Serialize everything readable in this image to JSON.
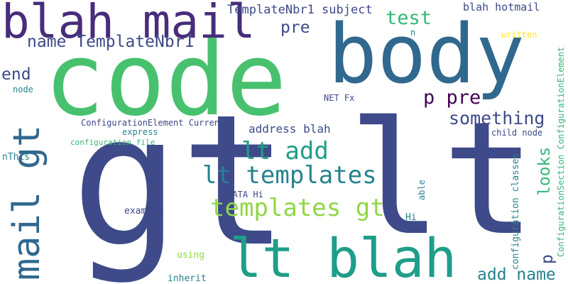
{
  "palette": {
    "navy": "#3e4a89",
    "indigo": "#472d7b",
    "purple": "#440154",
    "steel": "#31688e",
    "teal": "#26828e",
    "sea": "#1f9e89",
    "green": "#35b779",
    "mid_green": "#47c16e",
    "lime": "#8fd744",
    "yellow": "#fde725"
  },
  "words": [
    {
      "text": "gt",
      "color": "#3e4a89"
    },
    {
      "text": "lt",
      "color": "#3e4a89"
    },
    {
      "text": "code",
      "color": "#47c16e"
    },
    {
      "text": "body",
      "color": "#31688e"
    },
    {
      "text": "blah mail",
      "color": "#472d7b"
    },
    {
      "text": "lt blah",
      "color": "#1f9e89"
    },
    {
      "text": "mail gt",
      "color": "#31688e"
    },
    {
      "text": "lt templates",
      "color": "#26828e"
    },
    {
      "text": "templates gt",
      "color": "#8fd744"
    },
    {
      "text": "lt add",
      "color": "#1f9e89"
    },
    {
      "text": "TemplateNbr1 subject",
      "color": "#3e4a89"
    },
    {
      "text": "name TemplateNbr1",
      "color": "#3e4a89"
    },
    {
      "text": "test",
      "color": "#35b779"
    },
    {
      "text": "pre",
      "color": "#3e4a89"
    },
    {
      "text": "blah hotmail",
      "color": "#3e4a89"
    },
    {
      "text": "n",
      "color": "#26828e"
    },
    {
      "text": "written",
      "color": "#fde725"
    },
    {
      "text": "end",
      "color": "#3e4a89"
    },
    {
      "text": "p pre",
      "color": "#440154"
    },
    {
      "text": "something",
      "color": "#3e4a89"
    },
    {
      "text": "address blah",
      "color": "#3e4a89"
    },
    {
      "text": "NET Fx",
      "color": "#3e4a89"
    },
    {
      "text": "node",
      "color": "#26828e"
    },
    {
      "text": "ConfigurationElement Currently",
      "color": "#3e4a89"
    },
    {
      "text": "express",
      "color": "#26828e"
    },
    {
      "text": "configuration file",
      "color": "#35b779"
    },
    {
      "text": "child node",
      "color": "#3e4a89"
    },
    {
      "text": "nThis",
      "color": "#26828e"
    },
    {
      "text": "looks",
      "color": "#35b779"
    },
    {
      "text": "CDATA Hi",
      "color": "#3e4a89"
    },
    {
      "text": "example",
      "color": "#3e4a89"
    },
    {
      "text": "Hi",
      "color": "#26828e"
    },
    {
      "text": "using",
      "color": "#8fd744"
    },
    {
      "text": "inherit",
      "color": "#26828e"
    },
    {
      "text": "add name",
      "color": "#26828e"
    },
    {
      "text": "p",
      "color": "#3e4a89"
    },
    {
      "text": "able",
      "color": "#26828e"
    },
    {
      "text": "configuration classes",
      "color": "#26828e"
    },
    {
      "text": "ConfigurationSection ConfigurationElement",
      "color": "#35b779"
    }
  ]
}
